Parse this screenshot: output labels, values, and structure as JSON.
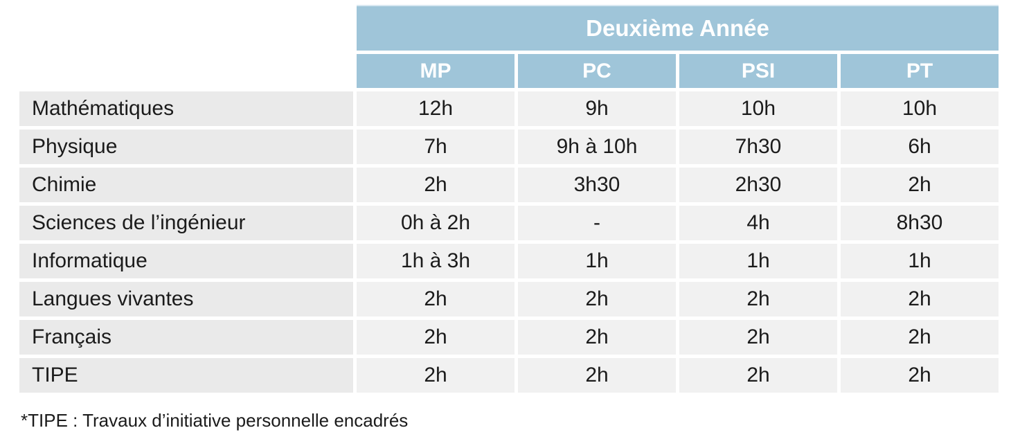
{
  "table": {
    "title": "Deuxième Année",
    "columns": [
      "MP",
      "PC",
      "PSI",
      "PT"
    ],
    "rows": [
      {
        "label": "Mathématiques",
        "values": [
          "12h",
          "9h",
          "10h",
          "10h"
        ]
      },
      {
        "label": "Physique",
        "values": [
          "7h",
          "9h à 10h",
          "7h30",
          "6h"
        ]
      },
      {
        "label": "Chimie",
        "values": [
          "2h",
          "3h30",
          "2h30",
          "2h"
        ]
      },
      {
        "label": "Sciences de l’ingénieur",
        "values": [
          "0h à 2h",
          "-",
          "4h",
          "8h30"
        ]
      },
      {
        "label": "Informatique",
        "values": [
          "1h à 3h",
          "1h",
          "1h",
          "1h"
        ]
      },
      {
        "label": "Langues vivantes",
        "values": [
          "2h",
          "2h",
          "2h",
          "2h"
        ]
      },
      {
        "label": "Français",
        "values": [
          "2h",
          "2h",
          "2h",
          "2h"
        ]
      },
      {
        "label": "TIPE",
        "values": [
          "2h",
          "2h",
          "2h",
          "2h"
        ]
      }
    ],
    "footnote": "*TIPE : Travaux d’initiative personnelle encadrés"
  },
  "colors": {
    "header_blue": "#9fc5d9",
    "header_text": "#ffffff",
    "label_row_bg": "#eaeaea",
    "data_cell_bg": "#f1f1f1",
    "text": "#1b1b1b"
  }
}
